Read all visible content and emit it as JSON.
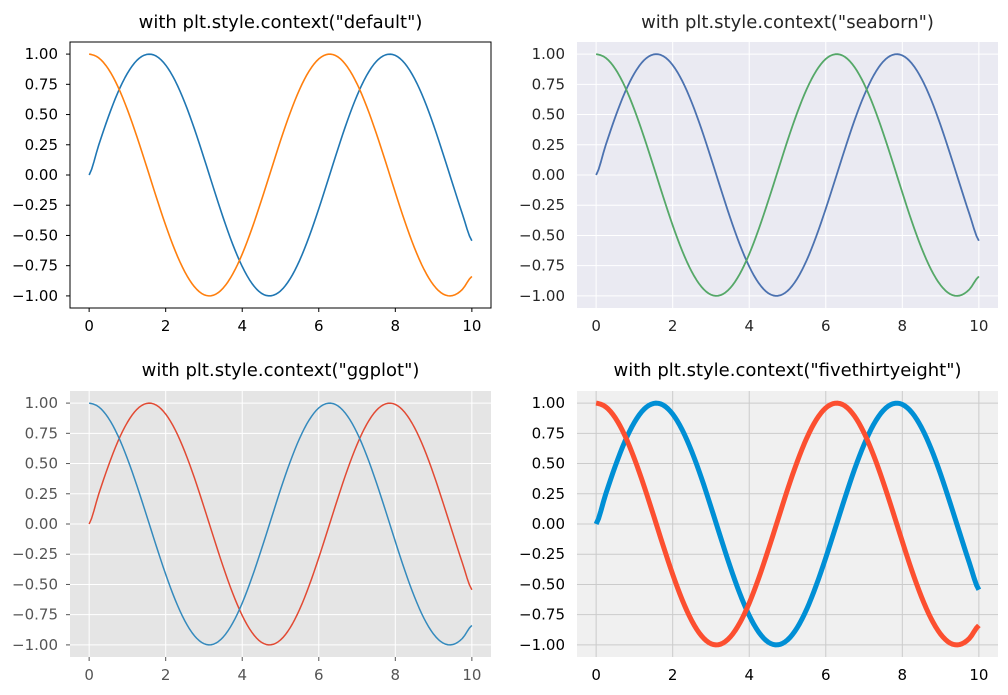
{
  "chart_data": [
    {
      "type": "line",
      "style": "default",
      "title": "with plt.style.context(\"default\")",
      "xlim": [
        -0.5,
        10.5
      ],
      "ylim": [
        -1.1,
        1.1
      ],
      "xticks": [
        0,
        2,
        4,
        6,
        8,
        10
      ],
      "xtick_labels": [
        "0",
        "2",
        "4",
        "6",
        "8",
        "10"
      ],
      "yticks": [
        1.0,
        0.75,
        0.5,
        0.25,
        0.0,
        -0.25,
        -0.5,
        -0.75,
        -1.0
      ],
      "ytick_labels": [
        "1.00",
        "0.75",
        "0.50",
        "0.25",
        "0.00",
        "−0.25",
        "−0.50",
        "−0.75",
        "−1.00"
      ],
      "grid": false,
      "x": [
        0,
        0.25,
        0.5,
        0.75,
        1,
        1.25,
        1.5,
        1.75,
        2,
        2.25,
        2.5,
        2.75,
        3,
        3.25,
        3.5,
        3.75,
        4,
        4.25,
        4.5,
        4.75,
        5,
        5.25,
        5.5,
        5.75,
        6,
        6.25,
        6.5,
        6.75,
        7,
        7.25,
        7.5,
        7.75,
        8,
        8.25,
        8.5,
        8.75,
        9,
        9.25,
        9.5,
        9.75,
        10
      ],
      "series": [
        {
          "color": "#1f77b4",
          "values": [
            0,
            0.247,
            0.479,
            0.682,
            0.841,
            0.949,
            0.997,
            0.984,
            0.909,
            0.778,
            0.598,
            0.382,
            0.141,
            -0.108,
            -0.351,
            -0.572,
            -0.757,
            -0.895,
            -0.978,
            -0.999,
            -0.959,
            -0.859,
            -0.706,
            -0.508,
            -0.279,
            -0.033,
            0.215,
            0.451,
            0.657,
            0.823,
            0.938,
            0.994,
            0.989,
            0.922,
            0.798,
            0.625,
            0.412,
            0.173,
            -0.075,
            -0.32,
            -0.544
          ]
        },
        {
          "color": "#ff7f0e",
          "values": [
            1,
            0.969,
            0.878,
            0.732,
            0.54,
            0.315,
            0.071,
            -0.178,
            -0.416,
            -0.628,
            -0.801,
            -0.924,
            -0.99,
            -0.994,
            -0.936,
            -0.82,
            -0.654,
            -0.446,
            -0.211,
            0.036,
            0.284,
            0.512,
            0.709,
            0.861,
            0.96,
            0.999,
            0.977,
            0.893,
            0.754,
            0.568,
            0.347,
            0.105,
            -0.145,
            -0.386,
            -0.602,
            -0.781,
            -0.911,
            -0.985,
            -0.997,
            -0.947,
            -0.839
          ]
        }
      ]
    },
    {
      "type": "line",
      "style": "seaborn",
      "title": "with plt.style.context(\"seaborn\")",
      "xlim": [
        -0.5,
        10.5
      ],
      "ylim": [
        -1.1,
        1.1
      ],
      "xticks": [
        0,
        2,
        4,
        6,
        8,
        10
      ],
      "xtick_labels": [
        "0",
        "2",
        "4",
        "6",
        "8",
        "10"
      ],
      "yticks": [
        1.0,
        0.75,
        0.5,
        0.25,
        0.0,
        -0.25,
        -0.5,
        -0.75,
        -1.0
      ],
      "ytick_labels": [
        "1.00",
        "0.75",
        "0.50",
        "0.25",
        "0.00",
        "−0.25",
        "−0.50",
        "−0.75",
        "−1.00"
      ],
      "grid": true,
      "x": [
        0,
        0.25,
        0.5,
        0.75,
        1,
        1.25,
        1.5,
        1.75,
        2,
        2.25,
        2.5,
        2.75,
        3,
        3.25,
        3.5,
        3.75,
        4,
        4.25,
        4.5,
        4.75,
        5,
        5.25,
        5.5,
        5.75,
        6,
        6.25,
        6.5,
        6.75,
        7,
        7.25,
        7.5,
        7.75,
        8,
        8.25,
        8.5,
        8.75,
        9,
        9.25,
        9.5,
        9.75,
        10
      ],
      "series": [
        {
          "color": "#4c72b0",
          "values": [
            0,
            0.247,
            0.479,
            0.682,
            0.841,
            0.949,
            0.997,
            0.984,
            0.909,
            0.778,
            0.598,
            0.382,
            0.141,
            -0.108,
            -0.351,
            -0.572,
            -0.757,
            -0.895,
            -0.978,
            -0.999,
            -0.959,
            -0.859,
            -0.706,
            -0.508,
            -0.279,
            -0.033,
            0.215,
            0.451,
            0.657,
            0.823,
            0.938,
            0.994,
            0.989,
            0.922,
            0.798,
            0.625,
            0.412,
            0.173,
            -0.075,
            -0.32,
            -0.544
          ]
        },
        {
          "color": "#55a868",
          "values": [
            1,
            0.969,
            0.878,
            0.732,
            0.54,
            0.315,
            0.071,
            -0.178,
            -0.416,
            -0.628,
            -0.801,
            -0.924,
            -0.99,
            -0.994,
            -0.936,
            -0.82,
            -0.654,
            -0.446,
            -0.211,
            0.036,
            0.284,
            0.512,
            0.709,
            0.861,
            0.96,
            0.999,
            0.977,
            0.893,
            0.754,
            0.568,
            0.347,
            0.105,
            -0.145,
            -0.386,
            -0.602,
            -0.781,
            -0.911,
            -0.985,
            -0.997,
            -0.947,
            -0.839
          ]
        }
      ]
    },
    {
      "type": "line",
      "style": "ggplot",
      "title": "with plt.style.context(\"ggplot\")",
      "xlim": [
        -0.5,
        10.5
      ],
      "ylim": [
        -1.1,
        1.1
      ],
      "xticks": [
        0,
        2,
        4,
        6,
        8,
        10
      ],
      "xtick_labels": [
        "0",
        "2",
        "4",
        "6",
        "8",
        "10"
      ],
      "yticks": [
        1.0,
        0.75,
        0.5,
        0.25,
        0.0,
        -0.25,
        -0.5,
        -0.75,
        -1.0
      ],
      "ytick_labels": [
        "1.00",
        "0.75",
        "0.50",
        "0.25",
        "0.00",
        "−0.25",
        "−0.50",
        "−0.75",
        "−1.00"
      ],
      "grid": true,
      "x": [
        0,
        0.25,
        0.5,
        0.75,
        1,
        1.25,
        1.5,
        1.75,
        2,
        2.25,
        2.5,
        2.75,
        3,
        3.25,
        3.5,
        3.75,
        4,
        4.25,
        4.5,
        4.75,
        5,
        5.25,
        5.5,
        5.75,
        6,
        6.25,
        6.5,
        6.75,
        7,
        7.25,
        7.5,
        7.75,
        8,
        8.25,
        8.5,
        8.75,
        9,
        9.25,
        9.5,
        9.75,
        10
      ],
      "series": [
        {
          "color": "#e24a33",
          "values": [
            0,
            0.247,
            0.479,
            0.682,
            0.841,
            0.949,
            0.997,
            0.984,
            0.909,
            0.778,
            0.598,
            0.382,
            0.141,
            -0.108,
            -0.351,
            -0.572,
            -0.757,
            -0.895,
            -0.978,
            -0.999,
            -0.959,
            -0.859,
            -0.706,
            -0.508,
            -0.279,
            -0.033,
            0.215,
            0.451,
            0.657,
            0.823,
            0.938,
            0.994,
            0.989,
            0.922,
            0.798,
            0.625,
            0.412,
            0.173,
            -0.075,
            -0.32,
            -0.544
          ]
        },
        {
          "color": "#348abd",
          "values": [
            1,
            0.969,
            0.878,
            0.732,
            0.54,
            0.315,
            0.071,
            -0.178,
            -0.416,
            -0.628,
            -0.801,
            -0.924,
            -0.99,
            -0.994,
            -0.936,
            -0.82,
            -0.654,
            -0.446,
            -0.211,
            0.036,
            0.284,
            0.512,
            0.709,
            0.861,
            0.96,
            0.999,
            0.977,
            0.893,
            0.754,
            0.568,
            0.347,
            0.105,
            -0.145,
            -0.386,
            -0.602,
            -0.781,
            -0.911,
            -0.985,
            -0.997,
            -0.947,
            -0.839
          ]
        }
      ]
    },
    {
      "type": "line",
      "style": "fivethirtyeight",
      "title": "with plt.style.context(\"fivethirtyeight\")",
      "xlim": [
        -0.5,
        10.5
      ],
      "ylim": [
        -1.1,
        1.1
      ],
      "xticks": [
        0,
        2,
        4,
        6,
        8,
        10
      ],
      "xtick_labels": [
        "0",
        "2",
        "4",
        "6",
        "8",
        "10"
      ],
      "yticks": [
        1.0,
        0.75,
        0.5,
        0.25,
        0.0,
        -0.25,
        -0.5,
        -0.75,
        -1.0
      ],
      "ytick_labels": [
        "1.00",
        "0.75",
        "0.50",
        "0.25",
        "0.00",
        "−0.25",
        "−0.50",
        "−0.75",
        "−1.00"
      ],
      "grid": true,
      "x": [
        0,
        0.25,
        0.5,
        0.75,
        1,
        1.25,
        1.5,
        1.75,
        2,
        2.25,
        2.5,
        2.75,
        3,
        3.25,
        3.5,
        3.75,
        4,
        4.25,
        4.5,
        4.75,
        5,
        5.25,
        5.5,
        5.75,
        6,
        6.25,
        6.5,
        6.75,
        7,
        7.25,
        7.5,
        7.75,
        8,
        8.25,
        8.5,
        8.75,
        9,
        9.25,
        9.5,
        9.75,
        10
      ],
      "series": [
        {
          "color": "#008fd5",
          "values": [
            0,
            0.247,
            0.479,
            0.682,
            0.841,
            0.949,
            0.997,
            0.984,
            0.909,
            0.778,
            0.598,
            0.382,
            0.141,
            -0.108,
            -0.351,
            -0.572,
            -0.757,
            -0.895,
            -0.978,
            -0.999,
            -0.959,
            -0.859,
            -0.706,
            -0.508,
            -0.279,
            -0.033,
            0.215,
            0.451,
            0.657,
            0.823,
            0.938,
            0.994,
            0.989,
            0.922,
            0.798,
            0.625,
            0.412,
            0.173,
            -0.075,
            -0.32,
            -0.544
          ]
        },
        {
          "color": "#fc4f30",
          "values": [
            1,
            0.969,
            0.878,
            0.732,
            0.54,
            0.315,
            0.071,
            -0.178,
            -0.416,
            -0.628,
            -0.801,
            -0.924,
            -0.99,
            -0.994,
            -0.936,
            -0.82,
            -0.654,
            -0.446,
            -0.211,
            0.036,
            0.284,
            0.512,
            0.709,
            0.861,
            0.96,
            0.999,
            0.977,
            0.893,
            0.754,
            0.568,
            0.347,
            0.105,
            -0.145,
            -0.386,
            -0.602,
            -0.781,
            -0.911,
            -0.985,
            -0.997,
            -0.947,
            -0.839
          ]
        }
      ]
    }
  ]
}
